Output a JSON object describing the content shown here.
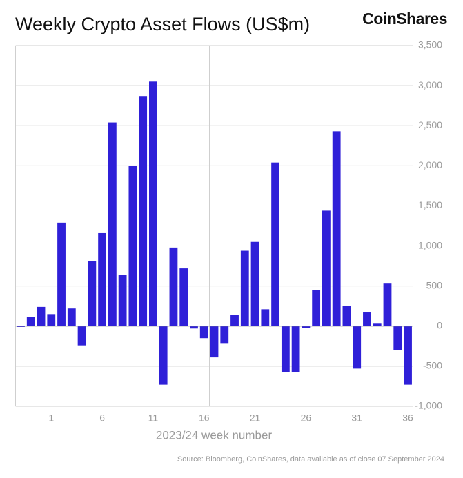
{
  "chart_data": {
    "type": "bar",
    "title": "Weekly Crypto Asset Flows (US$m)",
    "brand": "CoinShares",
    "x_label": "2023/24 week number",
    "source": "Source: Bloomberg, CoinShares, data available as of close 07 September 2024",
    "categories": [
      null,
      null,
      null,
      "1",
      null,
      null,
      null,
      null,
      "6",
      null,
      null,
      null,
      null,
      "11",
      null,
      null,
      null,
      null,
      "16",
      null,
      null,
      null,
      null,
      "21",
      null,
      null,
      null,
      null,
      "26",
      null,
      null,
      null,
      null,
      "31",
      null,
      null,
      null,
      null,
      "36"
    ],
    "values": [
      -10,
      110,
      240,
      150,
      1290,
      220,
      -240,
      810,
      1160,
      2540,
      640,
      2000,
      2870,
      3050,
      -730,
      980,
      720,
      -30,
      -150,
      -390,
      -220,
      140,
      940,
      1050,
      210,
      2040,
      -570,
      -570,
      -20,
      450,
      1440,
      2430,
      250,
      -530,
      170,
      30,
      530,
      -300,
      -730
    ],
    "color": "#2f20d8",
    "ylim": [
      -1000,
      3500
    ],
    "yticks": [
      {
        "value": -1000,
        "label": "-1,000"
      },
      -500,
      0,
      500,
      {
        "value": 1000,
        "label": "1,000"
      },
      {
        "value": 1500,
        "label": "1,500"
      },
      {
        "value": 2000,
        "label": "2,000"
      },
      {
        "value": 2500,
        "label": "2,500"
      },
      {
        "value": 3000,
        "label": "3,000"
      },
      {
        "value": 3500,
        "label": "3,500"
      }
    ],
    "grid": true
  }
}
